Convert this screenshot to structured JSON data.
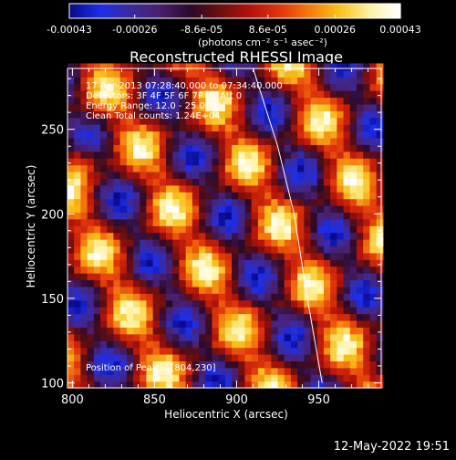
{
  "chart_data": {
    "type": "heatmap",
    "title": "Reconstructed RHESSI Image",
    "xlabel": "Heliocentric X (arcsec)",
    "ylabel": "Heliocentric Y (arcsec)",
    "xlim": [
      797,
      988
    ],
    "ylim": [
      97,
      286
    ],
    "x_ticks": [
      800,
      850,
      900,
      950
    ],
    "y_ticks": [
      100,
      150,
      200,
      250
    ],
    "grid": false,
    "colorbar": {
      "label": "(photons cm⁻² s⁻¹ asec⁻²)",
      "vmin": -0.00043,
      "vmax": 0.00043,
      "tick_labels": [
        "-0.00043",
        "-0.00026",
        "-8.6e-05",
        "8.6e-05",
        "0.00026",
        "0.00043"
      ],
      "tick_values": [
        -0.00043,
        -0.00026,
        -8.6e-05,
        8.6e-05,
        0.00026,
        0.00043
      ]
    },
    "annotations": [
      "17-Apr-2013 07:28:40.000 to 07:34:40.000",
      "Detectors: 3F 4F 5F 6F 7F 8F  Att 0",
      "Energy Range: 12.0 - 25.0 keV",
      "Clean     Total counts: 1.24E+04"
    ],
    "peak_label": "Position of Peak = [804,230]",
    "peak": {
      "x": 804,
      "y": 230
    },
    "limb_curve": [
      [
        910,
        286
      ],
      [
        925,
        240
      ],
      [
        935,
        200
      ],
      [
        943,
        150
      ],
      [
        952,
        100
      ]
    ],
    "colors": {
      "background": "#000000",
      "text": "#ffffff",
      "colormap": [
        "#0a0a8c",
        "#1e2ee8",
        "#3b2a9c",
        "#4a1f6e",
        "#2a0a2a",
        "#6b0f0f",
        "#b3120c",
        "#e0350a",
        "#f57a0f",
        "#f8c21a",
        "#fff2a0",
        "#ffffff"
      ]
    },
    "field_description": "pixelated alternating diagonal bands of red/orange/yellow (positive) and purple/blue (negative)"
  },
  "footer": {
    "timestamp": "12-May-2022 19:51"
  }
}
